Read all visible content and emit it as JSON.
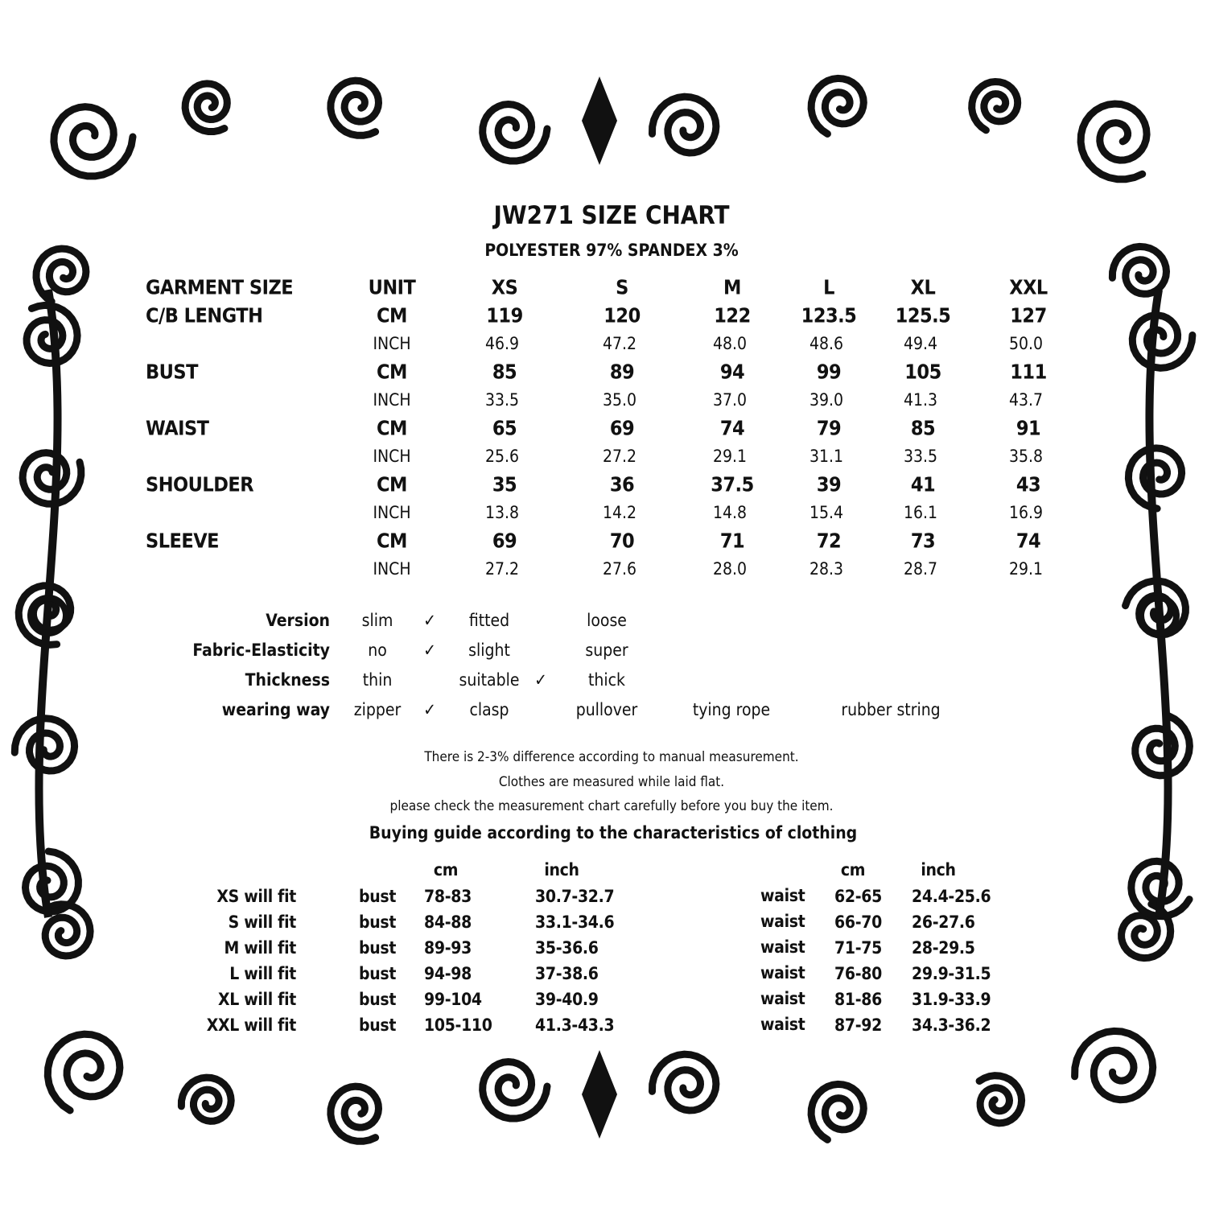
{
  "title": "JW271 SIZE CHART",
  "fabric": "POLYESTER 97% SPANDEX 3%",
  "size_table": {
    "headers": [
      "GARMENT SIZE",
      "UNIT",
      "XS",
      "S",
      "M",
      "L",
      "XL",
      "XXL"
    ],
    "rows": [
      {
        "label": "C/B LENGTH",
        "cm_unit": "CM",
        "cm": [
          "119",
          "120",
          "122",
          "123.5",
          "125.5",
          "127"
        ],
        "inch_unit": "INCH",
        "inch": [
          "46.9",
          "47.2",
          "48.0",
          "48.6",
          "49.4",
          "50.0"
        ]
      },
      {
        "label": "BUST",
        "cm_unit": "CM",
        "cm": [
          "85",
          "89",
          "94",
          "99",
          "105",
          "111"
        ],
        "inch_unit": "INCH",
        "inch": [
          "33.5",
          "35.0",
          "37.0",
          "39.0",
          "41.3",
          "43.7"
        ]
      },
      {
        "label": "WAIST",
        "cm_unit": "CM",
        "cm": [
          "65",
          "69",
          "74",
          "79",
          "85",
          "91"
        ],
        "inch_unit": "INCH",
        "inch": [
          "25.6",
          "27.2",
          "29.1",
          "31.1",
          "33.5",
          "35.8"
        ]
      },
      {
        "label": "SHOULDER",
        "cm_unit": "CM",
        "cm": [
          "35",
          "36",
          "37.5",
          "39",
          "41",
          "43"
        ],
        "inch_unit": "INCH",
        "inch": [
          "13.8",
          "14.2",
          "14.8",
          "15.4",
          "16.1",
          "16.9"
        ]
      },
      {
        "label": "SLEEVE",
        "cm_unit": "CM",
        "cm": [
          "69",
          "70",
          "71",
          "72",
          "73",
          "74"
        ],
        "inch_unit": "INCH",
        "inch": [
          "27.2",
          "27.6",
          "28.0",
          "28.3",
          "28.7",
          "29.1"
        ]
      }
    ]
  },
  "attributes": [
    {
      "label": "Version",
      "options": [
        "slim",
        "fitted",
        "loose"
      ],
      "checked": 0
    },
    {
      "label": "Fabric-Elasticity",
      "options": [
        "no",
        "slight",
        "super"
      ],
      "checked": 0
    },
    {
      "label": "Thickness",
      "options": [
        "thin",
        "suitable",
        "thick"
      ],
      "checked": 1
    },
    {
      "label": "wearing way",
      "options": [
        "zipper",
        "clasp",
        "pullover",
        "tying rope",
        "rubber string"
      ],
      "checked": 0
    }
  ],
  "check_mark": "✓",
  "notes": [
    "There is 2-3% difference according to manual measurement.",
    "Clothes are measured while laid flat.",
    "please check the measurement chart carefully before you buy the item."
  ],
  "guide": {
    "title": "Buying guide according to the characteristics of clothing",
    "cm_header": "cm",
    "inch_header": "inch",
    "rows": [
      {
        "label": "XS will  fit",
        "bust": "bust",
        "bust_cm": "78-83",
        "bust_inch": "30.7-32.7",
        "waist": "waist",
        "waist_cm": "62-65",
        "waist_inch": "24.4-25.6"
      },
      {
        "label": "S will  fit",
        "bust": "bust",
        "bust_cm": "84-88",
        "bust_inch": "33.1-34.6",
        "waist": "waist",
        "waist_cm": "66-70",
        "waist_inch": "26-27.6"
      },
      {
        "label": "M will fit",
        "bust": "bust",
        "bust_cm": "89-93",
        "bust_inch": "35-36.6",
        "waist": "waist",
        "waist_cm": "71-75",
        "waist_inch": "28-29.5"
      },
      {
        "label": "L will fit",
        "bust": "bust",
        "bust_cm": "94-98",
        "bust_inch": "37-38.6",
        "waist": "waist",
        "waist_cm": "76-80",
        "waist_inch": "29.9-31.5"
      },
      {
        "label": "XL will fit",
        "bust": "bust",
        "bust_cm": "99-104",
        "bust_inch": "39-40.9",
        "waist": "waist",
        "waist_cm": "81-86",
        "waist_inch": "31.9-33.9"
      },
      {
        "label": "XXL will fit",
        "bust": "bust",
        "bust_cm": "105-110",
        "bust_inch": "41.3-43.3",
        "waist": "waist",
        "waist_cm": "87-92",
        "waist_inch": "34.3-36.2"
      }
    ]
  },
  "colors": {
    "ink": "#111111",
    "background": "#ffffff"
  }
}
